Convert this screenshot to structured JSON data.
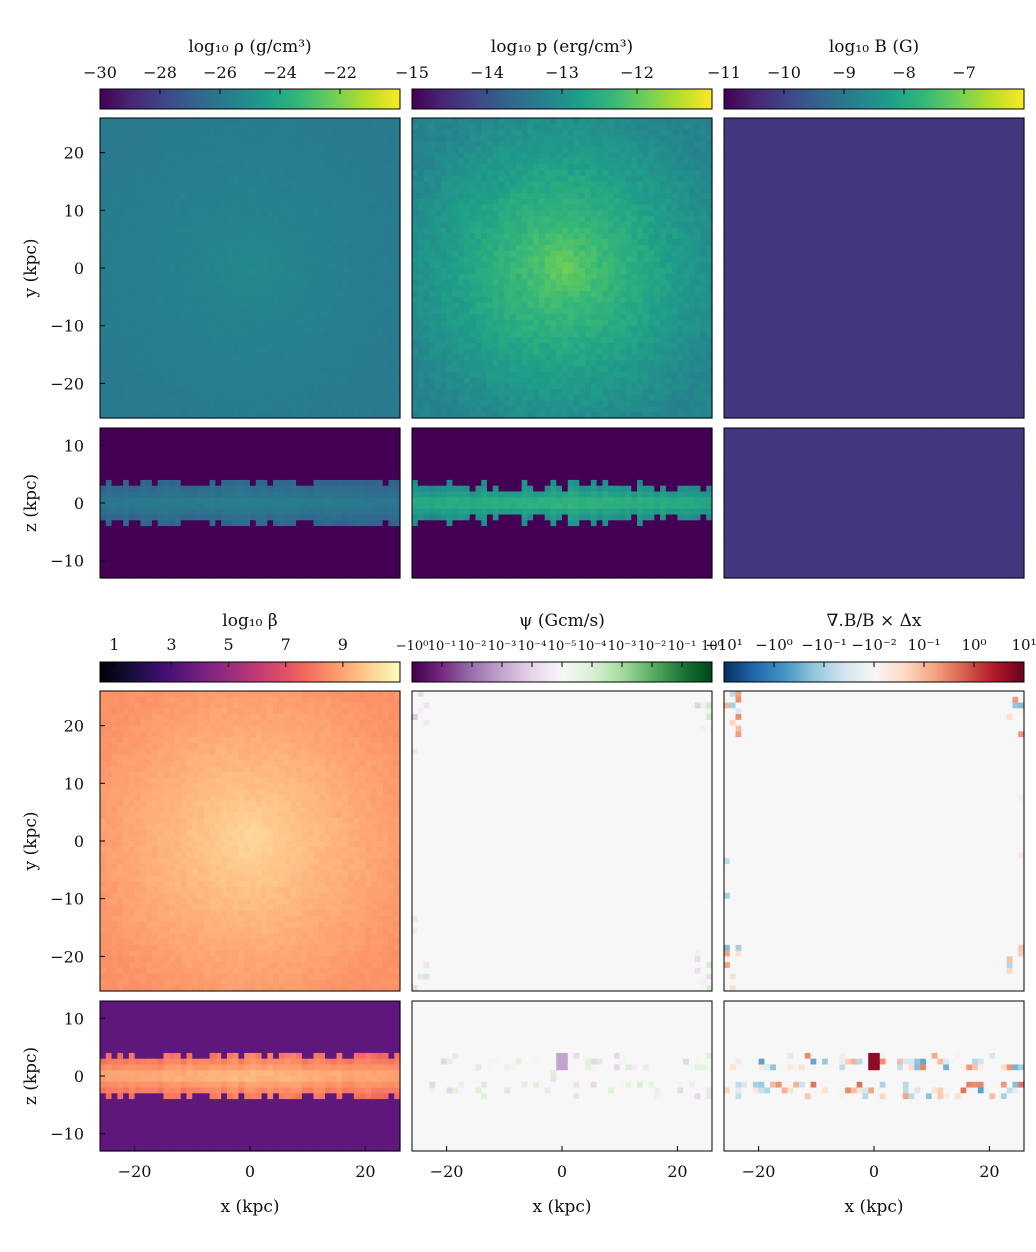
{
  "figure": {
    "x_tick_labels": [
      "−20",
      "0",
      "20"
    ],
    "y_tick_labels_face": [
      "20",
      "10",
      "0",
      "−10",
      "−20"
    ],
    "y_tick_labels_edge": [
      "10",
      "0",
      "−10"
    ]
  },
  "chart_data": [
    {
      "panel": "density",
      "type": "heatmap",
      "title": "log₁₀ ρ (g/cm³)",
      "colormap": "viridis",
      "colorbar_ticks": [
        "−30",
        "−28",
        "−26",
        "−24",
        "−22"
      ],
      "colorbar_range": [
        -30,
        -20
      ],
      "face_on": {
        "xlabel": "",
        "ylabel": "y (kpc)",
        "xlim": [
          -26,
          26
        ],
        "ylim": [
          -26,
          26
        ],
        "center_value": -25.3,
        "edge_value": -25.9
      },
      "edge_on": {
        "xlabel": "",
        "ylabel": "z (kpc)",
        "xlim": [
          -26,
          26
        ],
        "ylim": [
          -13,
          13
        ],
        "disk_half_thickness_kpc": 3.5,
        "disk_value": -25.6,
        "background_value": -30
      }
    },
    {
      "panel": "pressure",
      "type": "heatmap",
      "title": "log₁₀ p (erg/cm³)",
      "colormap": "viridis",
      "colorbar_ticks": [
        "−15",
        "−14",
        "−13",
        "−12"
      ],
      "colorbar_range": [
        -15,
        -11
      ],
      "face_on": {
        "xlabel": "",
        "ylabel": "",
        "xlim": [
          -26,
          26
        ],
        "ylim": [
          -26,
          26
        ],
        "center_value": -11.9,
        "edge_value": -13.2
      },
      "edge_on": {
        "xlabel": "",
        "ylabel": "",
        "xlim": [
          -26,
          26
        ],
        "ylim": [
          -13,
          13
        ],
        "disk_half_thickness_kpc": 3.0,
        "disk_value": -12.3,
        "background_value": -15
      }
    },
    {
      "panel": "magnetic_field",
      "type": "heatmap",
      "title": "log₁₀ B (G)",
      "colormap": "viridis",
      "colorbar_ticks": [
        "−11",
        "−10",
        "−9",
        "−8",
        "−7"
      ],
      "colorbar_range": [
        -11,
        -6
      ],
      "face_on": {
        "xlabel": "",
        "ylabel": "",
        "xlim": [
          -26,
          26
        ],
        "ylim": [
          -26,
          26
        ],
        "center_value": -10.2,
        "edge_value": -10.2
      },
      "edge_on": {
        "xlabel": "",
        "ylabel": "",
        "xlim": [
          -26,
          26
        ],
        "ylim": [
          -13,
          13
        ],
        "disk_half_thickness_kpc": 3.0,
        "disk_value": -10.2,
        "background_value": -10.2
      }
    },
    {
      "panel": "plasma_beta",
      "type": "heatmap",
      "title": "log₁₀ β",
      "colormap": "magma",
      "colorbar_ticks": [
        "1",
        "3",
        "5",
        "7",
        "9"
      ],
      "colorbar_range": [
        0.5,
        11
      ],
      "face_on": {
        "xlabel": "",
        "ylabel": "y (kpc)",
        "xlim": [
          -26,
          26
        ],
        "ylim": [
          -26,
          26
        ],
        "center_value": 10.2,
        "edge_value": 8.6
      },
      "edge_on": {
        "xlabel": "x (kpc)",
        "ylabel": "z (kpc)",
        "xlim": [
          -26,
          26
        ],
        "ylim": [
          -13,
          13
        ],
        "disk_half_thickness_kpc": 3.5,
        "disk_value": 9.6,
        "background_value": 3.5
      }
    },
    {
      "panel": "psi",
      "type": "heatmap",
      "title": "ψ (Gcm/s)",
      "colormap": "PRGn",
      "colorbar_ticks": [
        "−10⁰",
        "10⁻¹",
        "10⁻²",
        "10⁻³",
        "10⁻⁴",
        "10⁻⁵",
        "10⁻⁴",
        "10⁻³",
        "10⁻²",
        "10⁻¹",
        "10⁰"
      ],
      "colorbar_range": [
        -1,
        1
      ],
      "face_on": {
        "xlabel": "",
        "ylabel": "",
        "xlim": [
          -26,
          26
        ],
        "ylim": [
          -26,
          26
        ],
        "center_value": 0,
        "edge_value": 0
      },
      "edge_on": {
        "xlabel": "x (kpc)",
        "ylabel": "",
        "xlim": [
          -26,
          26
        ],
        "ylim": [
          -13,
          13
        ],
        "disk_half_thickness_kpc": 3.0,
        "disk_value": 0,
        "background_value": 0
      }
    },
    {
      "panel": "divergence_error",
      "type": "heatmap",
      "title": "∇.B/B × Δx",
      "colormap": "RdBu_r",
      "colorbar_ticks": [
        "−10¹",
        "−10⁰",
        "−10⁻¹",
        "−10⁻²",
        "10⁻¹",
        "10⁰",
        "10¹"
      ],
      "colorbar_range": [
        -10,
        10
      ],
      "face_on": {
        "xlabel": "",
        "ylabel": "",
        "xlim": [
          -26,
          26
        ],
        "ylim": [
          -26,
          26
        ],
        "center_value": 0,
        "edge_value": 0
      },
      "edge_on": {
        "xlabel": "x (kpc)",
        "ylabel": "",
        "xlim": [
          -26,
          26
        ],
        "ylim": [
          -13,
          13
        ],
        "disk_half_thickness_kpc": 3.0,
        "disk_value": 0,
        "background_value": 0
      }
    }
  ]
}
